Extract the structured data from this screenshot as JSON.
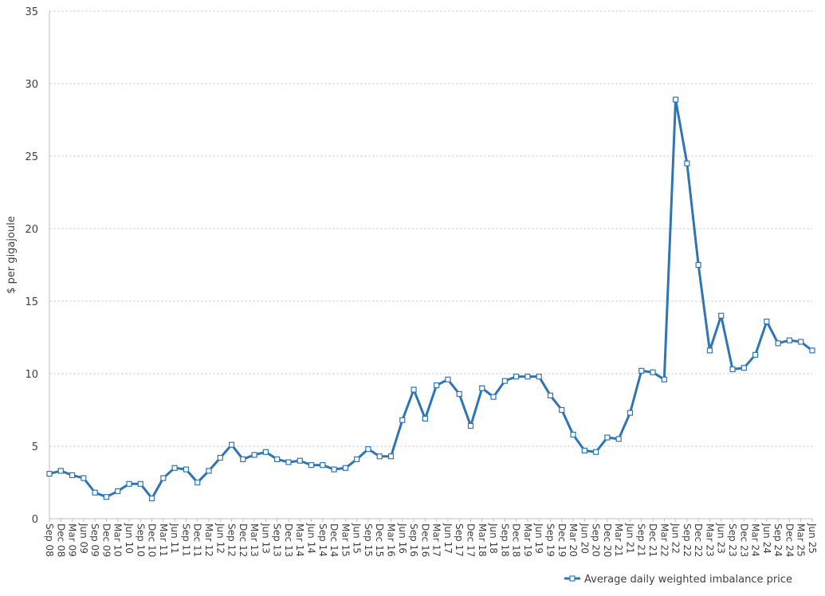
{
  "colors": {
    "series": "#2e75b6",
    "grid": "#c9d3e3",
    "axis": "#bfbfbf",
    "text": "#404040"
  },
  "chart_data": {
    "type": "line",
    "title": "",
    "xlabel": "",
    "ylabel": "$ per gigajoule",
    "ylim": [
      0,
      35
    ],
    "yticks": [
      0,
      5,
      10,
      15,
      20,
      25,
      30,
      35
    ],
    "grid": "horizontal dashed",
    "legend_position": "bottom-right",
    "categories": [
      "Sep 08",
      "Dec 08",
      "Mar 09",
      "Jun 09",
      "Sep 09",
      "Dec 09",
      "Mar 10",
      "Jun 10",
      "Sep 10",
      "Dec 10",
      "Mar 11",
      "Jun 11",
      "Sep 11",
      "Dec 11",
      "Mar 12",
      "Jun 12",
      "Sep 12",
      "Dec 12",
      "Mar 13",
      "Jun 13",
      "Sep 13",
      "Dec 13",
      "Mar 14",
      "Jun 14",
      "Sep 14",
      "Dec 14",
      "Mar 15",
      "Jun 15",
      "Sep 15",
      "Dec 15",
      "Mar 16",
      "Jun 16",
      "Sep 16",
      "Dec 16",
      "Mar 17",
      "Jun 17",
      "Sep 17",
      "Dec 17",
      "Mar 18",
      "Jun 18",
      "Sep 18",
      "Dec 18",
      "Mar 19",
      "Jun 19",
      "Sep 19",
      "Dec 19",
      "Mar 20",
      "Jun 20",
      "Sep 20",
      "Dec 20",
      "Mar 21",
      "Jun 21",
      "Sep 21",
      "Dec 21",
      "Mar 22",
      "Jun 22",
      "Sep 22",
      "Dec 22",
      "Mar 23",
      "Jun 23",
      "Sep 23",
      "Dec 23",
      "Mar 24",
      "Jun 24",
      "Sep 24",
      "Dec 24",
      "Mar 25",
      "Jun 25"
    ],
    "series": [
      {
        "name": "Average daily weighted imbalance price",
        "values": [
          3.1,
          3.3,
          3.0,
          2.8,
          1.8,
          1.5,
          1.9,
          2.4,
          2.4,
          1.4,
          2.8,
          3.5,
          3.4,
          2.5,
          3.3,
          4.2,
          5.1,
          4.1,
          4.4,
          4.6,
          4.1,
          3.9,
          4.0,
          3.7,
          3.7,
          3.4,
          3.5,
          4.1,
          4.8,
          4.3,
          4.3,
          6.8,
          8.9,
          6.9,
          9.2,
          9.6,
          8.6,
          6.4,
          9.0,
          8.4,
          9.5,
          9.8,
          9.8,
          9.8,
          8.5,
          7.5,
          5.8,
          4.7,
          4.6,
          5.6,
          5.5,
          7.3,
          10.2,
          10.1,
          9.6,
          28.9,
          24.5,
          17.5,
          11.6,
          14.0,
          10.3,
          10.4,
          11.3,
          13.6,
          12.1,
          12.3,
          12.2,
          11.6
        ]
      }
    ]
  }
}
